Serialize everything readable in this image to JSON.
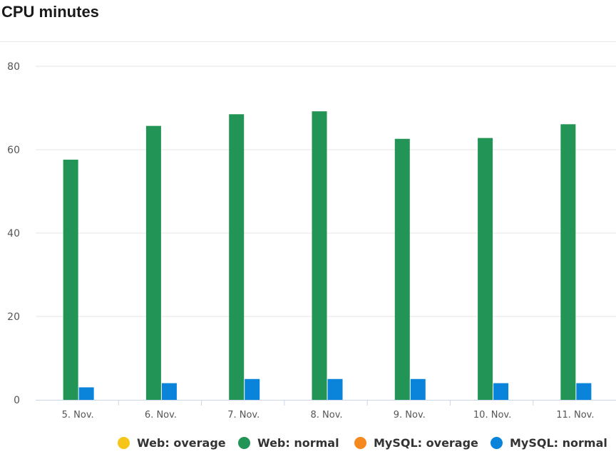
{
  "chart_data": {
    "type": "bar",
    "title": "CPU minutes",
    "categories": [
      "5. Nov.",
      "6. Nov.",
      "7. Nov.",
      "8. Nov.",
      "9. Nov.",
      "10. Nov.",
      "11. Nov."
    ],
    "ylim": [
      0,
      80
    ],
    "yticks": [
      0,
      20,
      40,
      60,
      80
    ],
    "grid": true,
    "legend_position": "bottom",
    "series": [
      {
        "name": "Web: overage",
        "color": "#f5c518",
        "values": [
          0,
          0,
          0,
          0,
          0,
          0,
          0
        ]
      },
      {
        "name": "Web: normal",
        "color": "#229455",
        "values": [
          57.6,
          65.7,
          68.5,
          69.2,
          62.6,
          62.8,
          66.1
        ]
      },
      {
        "name": "MySQL: overage",
        "color": "#f5891e",
        "values": [
          0,
          0,
          0,
          0,
          0,
          0,
          0
        ]
      },
      {
        "name": "MySQL: normal",
        "color": "#0a84db",
        "values": [
          3,
          4,
          5,
          5,
          5,
          4,
          4
        ]
      }
    ]
  }
}
